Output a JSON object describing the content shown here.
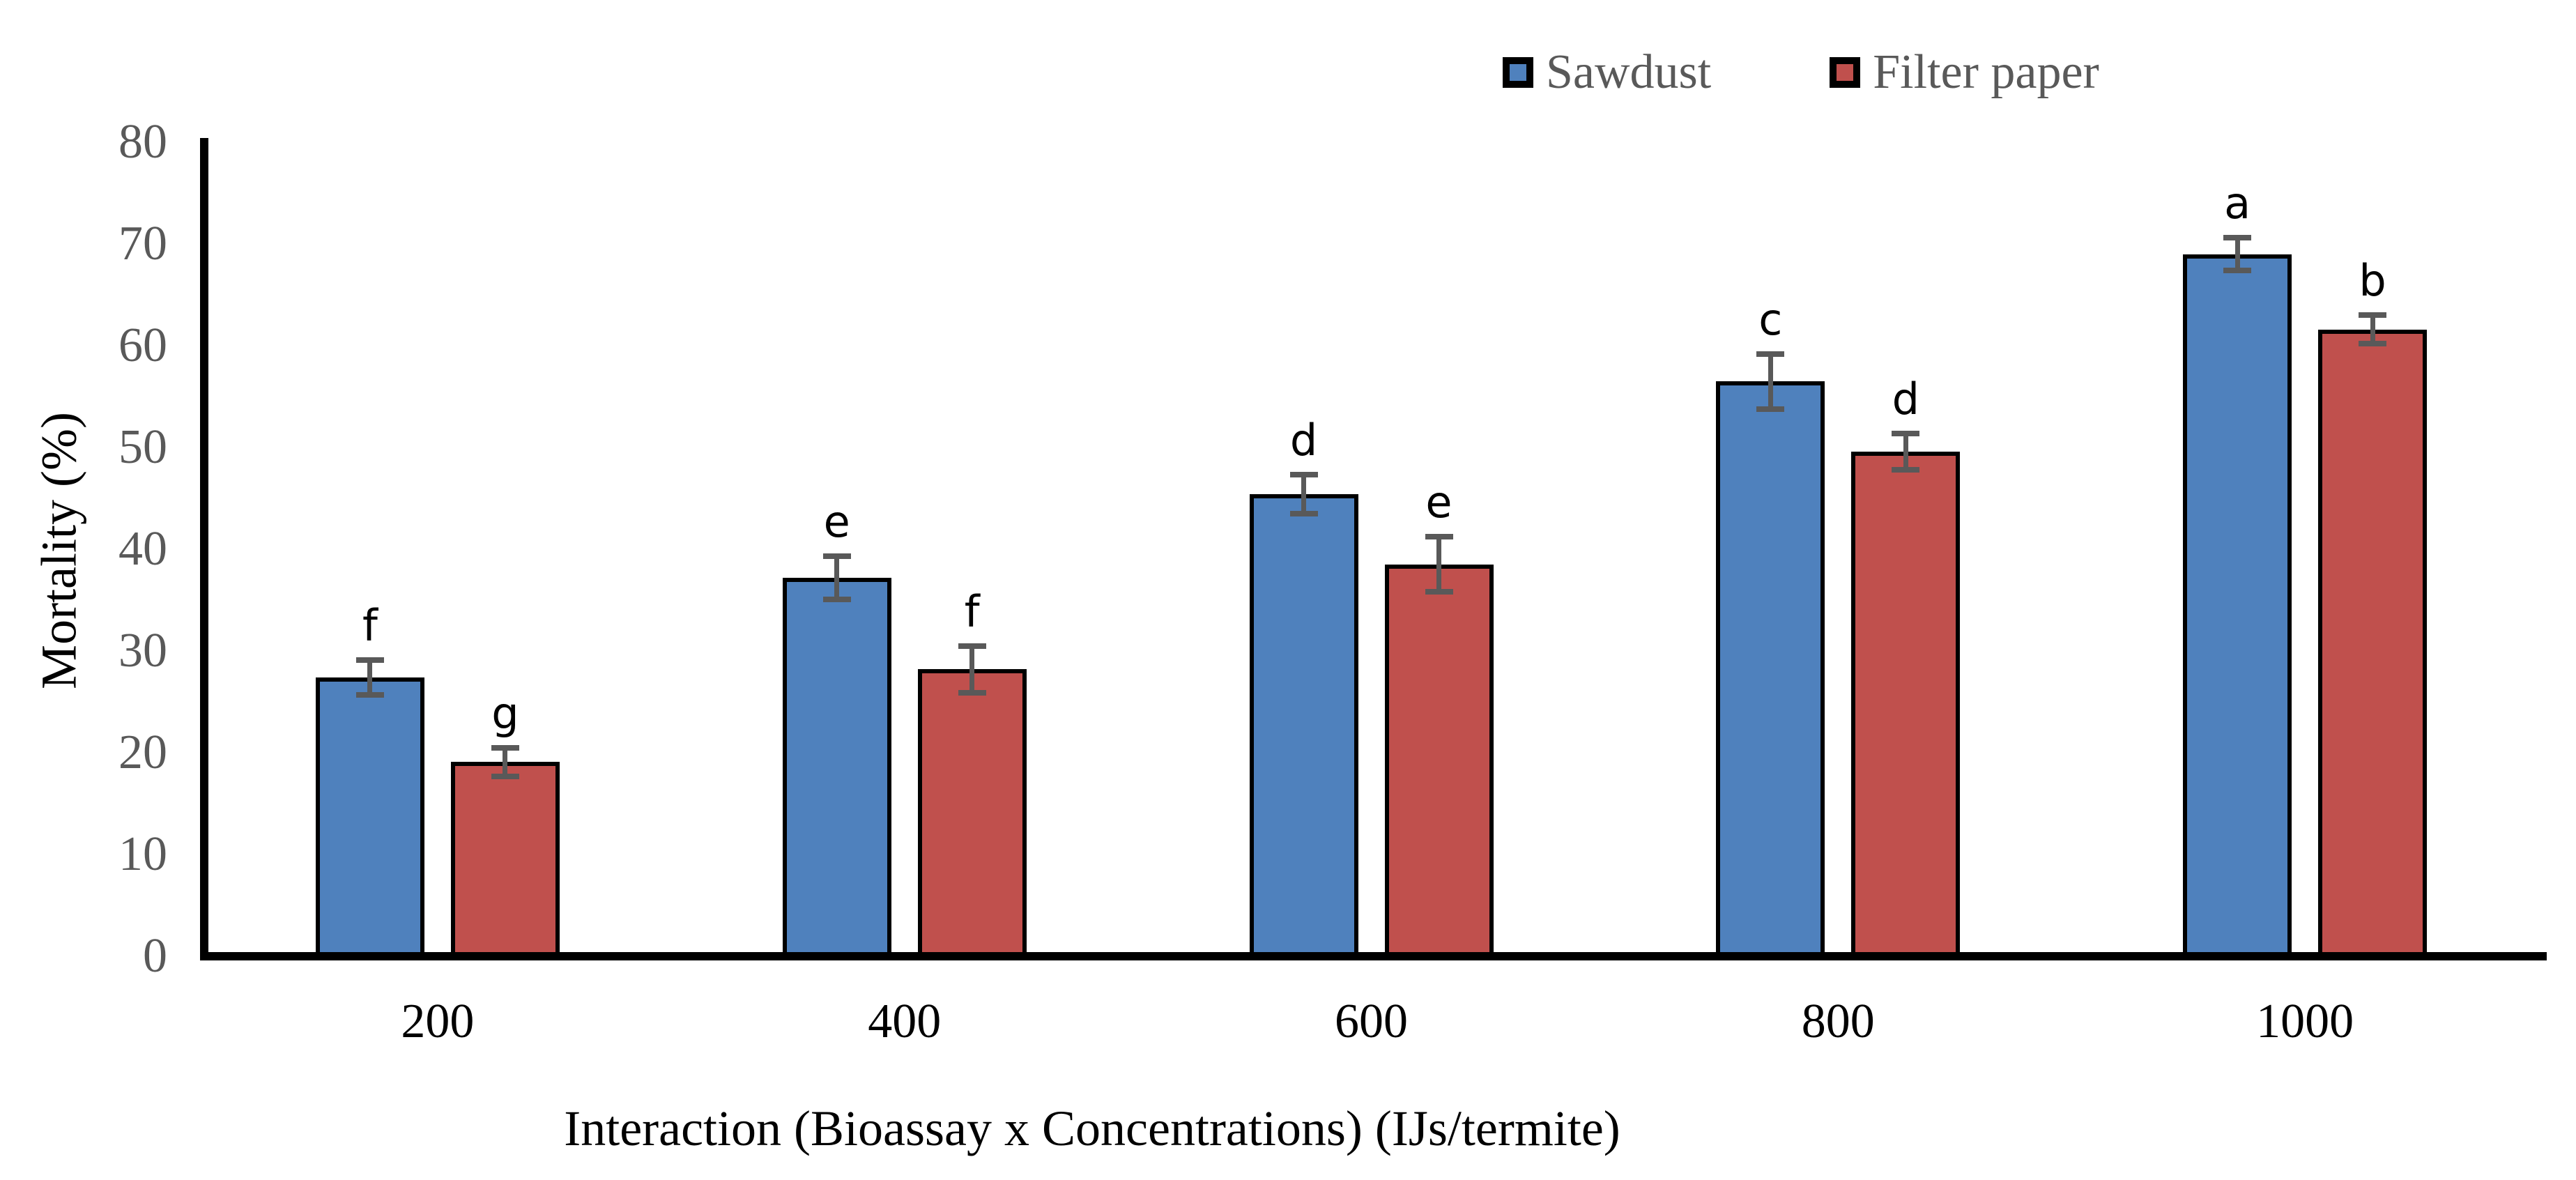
{
  "chart_data": {
    "type": "bar",
    "title": "",
    "xlabel": "Interaction (Bioassay x Concentrations) (IJs/termite)",
    "ylabel": "Mortality (%)",
    "categories": [
      "200",
      "400",
      "600",
      "800",
      "1000"
    ],
    "series": [
      {
        "name": "Sawdust",
        "color": "#4F81BD",
        "values": [
          27.4,
          37.2,
          45.4,
          56.5,
          69.0
        ],
        "errors": [
          1.7,
          2.1,
          1.9,
          2.7,
          1.6
        ],
        "letters": [
          "f",
          "e",
          "d",
          "c",
          "a"
        ]
      },
      {
        "name": "Filter paper",
        "color": "#C0504D",
        "values": [
          19.1,
          28.2,
          38.5,
          49.6,
          61.6
        ],
        "errors": [
          1.4,
          2.3,
          2.7,
          1.8,
          1.4
        ],
        "letters": [
          "g",
          "f",
          "e",
          "d",
          "b"
        ]
      }
    ],
    "y_ticks": [
      0,
      10,
      20,
      30,
      40,
      50,
      60,
      70,
      80
    ],
    "ylim": [
      0,
      80
    ],
    "grid": false,
    "legend_position": "top-right",
    "bar_outline_color": "#000000",
    "error_bar_color": "#595959",
    "axis_color": "#000000",
    "ytick_color": "#595959",
    "xtick_color": "#000000"
  }
}
